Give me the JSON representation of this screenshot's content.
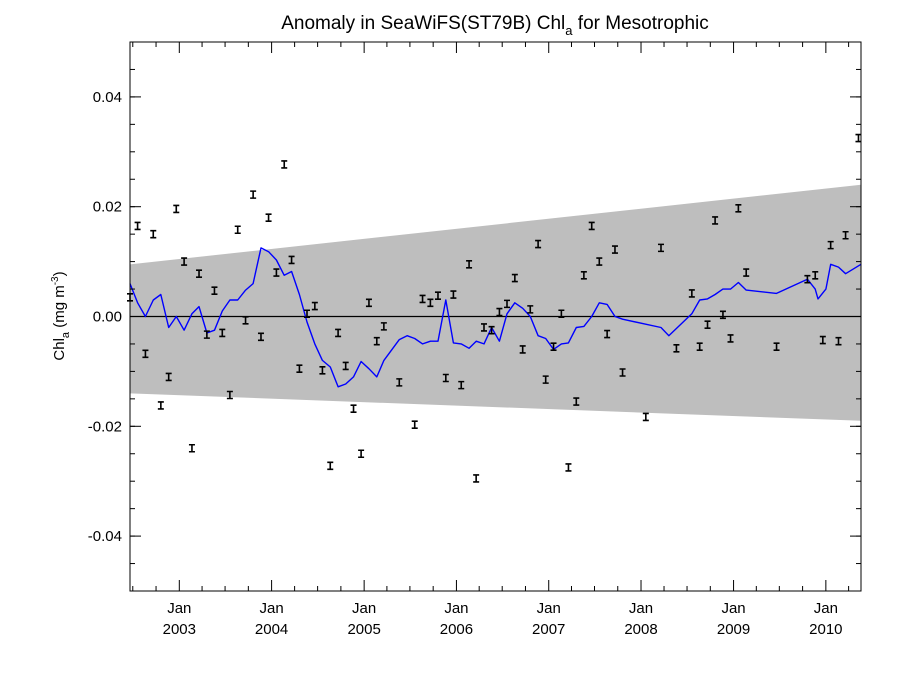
{
  "chart_data": {
    "type": "line",
    "title": "Anomaly in SeaWiFS(ST79B) Chl",
    "title_sub": "a",
    "title_suffix": " for Mesotrophic",
    "ylabel": {
      "base": "Chl",
      "sub": "a",
      "unit_open": " (mg m",
      "sup": "-3",
      "unit_close": ")"
    },
    "xlim": [
      "2002-06-20",
      "2010-05-20"
    ],
    "ylim": [
      -0.05,
      0.05
    ],
    "y_ticks": [
      {
        "value": -0.04,
        "label": "-0.04"
      },
      {
        "value": -0.02,
        "label": "-0.02"
      },
      {
        "value": 0.0,
        "label": "0.00"
      },
      {
        "value": 0.02,
        "label": "0.02"
      },
      {
        "value": 0.04,
        "label": "0.04"
      }
    ],
    "x_ticks": [
      {
        "date": "2003-01-01",
        "month": "Jan",
        "year": "2003"
      },
      {
        "date": "2004-01-01",
        "month": "Jan",
        "year": "2004"
      },
      {
        "date": "2005-01-01",
        "month": "Jan",
        "year": "2005"
      },
      {
        "date": "2006-01-01",
        "month": "Jan",
        "year": "2006"
      },
      {
        "date": "2007-01-01",
        "month": "Jan",
        "year": "2007"
      },
      {
        "date": "2008-01-01",
        "month": "Jan",
        "year": "2008"
      },
      {
        "date": "2009-01-01",
        "month": "Jan",
        "year": "2009"
      },
      {
        "date": "2010-01-01",
        "month": "Jan",
        "year": "2010"
      }
    ],
    "confidence_band": {
      "start": "2002-06-20",
      "end": "2010-05-20",
      "upper": [
        0.0095,
        0.024
      ],
      "lower": [
        -0.014,
        -0.019
      ],
      "color": "#bebebe"
    },
    "zero_line": 0.0,
    "series": [
      {
        "kind": "anomaly_points_with_error_bars",
        "color": "#000000",
        "points": [
          {
            "x": "2002-06-20",
            "y": 0.0035
          },
          {
            "x": "2002-07-20",
            "y": 0.0165
          },
          {
            "x": "2002-08-20",
            "y": -0.0068
          },
          {
            "x": "2002-09-20",
            "y": 0.015
          },
          {
            "x": "2002-10-20",
            "y": -0.0162
          },
          {
            "x": "2002-11-20",
            "y": -0.011
          },
          {
            "x": "2002-12-20",
            "y": 0.0196
          },
          {
            "x": "2003-01-20",
            "y": 0.01
          },
          {
            "x": "2003-02-20",
            "y": -0.024
          },
          {
            "x": "2003-03-20",
            "y": 0.0078
          },
          {
            "x": "2003-04-20",
            "y": -0.0033
          },
          {
            "x": "2003-05-20",
            "y": 0.0047
          },
          {
            "x": "2003-06-20",
            "y": -0.003
          },
          {
            "x": "2003-07-20",
            "y": -0.0143
          },
          {
            "x": "2003-08-20",
            "y": 0.0158
          },
          {
            "x": "2003-09-20",
            "y": -0.0007
          },
          {
            "x": "2003-10-20",
            "y": 0.0222
          },
          {
            "x": "2003-11-20",
            "y": -0.0037
          },
          {
            "x": "2003-12-20",
            "y": 0.018
          },
          {
            "x": "2004-01-20",
            "y": 0.008
          },
          {
            "x": "2004-02-20",
            "y": 0.0277
          },
          {
            "x": "2004-03-20",
            "y": 0.0103
          },
          {
            "x": "2004-04-20",
            "y": -0.0095
          },
          {
            "x": "2004-05-20",
            "y": 0.0005
          },
          {
            "x": "2004-06-20",
            "y": 0.0019
          },
          {
            "x": "2004-07-20",
            "y": -0.0098
          },
          {
            "x": "2004-08-20",
            "y": -0.0272
          },
          {
            "x": "2004-09-20",
            "y": -0.003
          },
          {
            "x": "2004-10-20",
            "y": -0.009
          },
          {
            "x": "2004-11-20",
            "y": -0.0168
          },
          {
            "x": "2004-12-20",
            "y": -0.025
          },
          {
            "x": "2005-01-20",
            "y": 0.0025
          },
          {
            "x": "2005-02-20",
            "y": -0.0045
          },
          {
            "x": "2005-03-20",
            "y": -0.0018
          },
          {
            "x": "2005-05-20",
            "y": -0.012
          },
          {
            "x": "2005-07-20",
            "y": -0.0197
          },
          {
            "x": "2005-08-20",
            "y": 0.0032
          },
          {
            "x": "2005-09-20",
            "y": 0.0025
          },
          {
            "x": "2005-10-20",
            "y": 0.0038
          },
          {
            "x": "2005-11-20",
            "y": -0.0112
          },
          {
            "x": "2005-12-20",
            "y": 0.004
          },
          {
            "x": "2006-01-20",
            "y": -0.0125
          },
          {
            "x": "2006-02-20",
            "y": 0.0095
          },
          {
            "x": "2006-03-20",
            "y": -0.0295
          },
          {
            "x": "2006-04-20",
            "y": -0.002
          },
          {
            "x": "2006-05-20",
            "y": -0.0025
          },
          {
            "x": "2006-06-20",
            "y": 0.0008
          },
          {
            "x": "2006-07-20",
            "y": 0.0023
          },
          {
            "x": "2006-08-20",
            "y": 0.007
          },
          {
            "x": "2006-09-20",
            "y": -0.006
          },
          {
            "x": "2006-10-20",
            "y": 0.0013
          },
          {
            "x": "2006-11-20",
            "y": 0.0132
          },
          {
            "x": "2006-12-20",
            "y": -0.0115
          },
          {
            "x": "2007-01-20",
            "y": -0.0055
          },
          {
            "x": "2007-02-20",
            "y": 0.0005
          },
          {
            "x": "2007-03-20",
            "y": -0.0275
          },
          {
            "x": "2007-04-20",
            "y": -0.0155
          },
          {
            "x": "2007-05-20",
            "y": 0.0075
          },
          {
            "x": "2007-06-20",
            "y": 0.0165
          },
          {
            "x": "2007-07-20",
            "y": 0.01
          },
          {
            "x": "2007-08-20",
            "y": -0.0032
          },
          {
            "x": "2007-09-20",
            "y": 0.0122
          },
          {
            "x": "2007-10-20",
            "y": -0.0102
          },
          {
            "x": "2008-01-20",
            "y": -0.0183
          },
          {
            "x": "2008-03-20",
            "y": 0.0125
          },
          {
            "x": "2008-05-20",
            "y": -0.0058
          },
          {
            "x": "2008-07-20",
            "y": 0.0042
          },
          {
            "x": "2008-08-20",
            "y": -0.0055
          },
          {
            "x": "2008-09-20",
            "y": -0.0015
          },
          {
            "x": "2008-10-20",
            "y": 0.0175
          },
          {
            "x": "2008-11-20",
            "y": 0.0003
          },
          {
            "x": "2008-12-20",
            "y": -0.004
          },
          {
            "x": "2009-01-20",
            "y": 0.0197
          },
          {
            "x": "2009-02-20",
            "y": 0.008
          },
          {
            "x": "2009-06-20",
            "y": -0.0055
          },
          {
            "x": "2009-10-20",
            "y": 0.0068
          },
          {
            "x": "2009-11-20",
            "y": 0.0075
          },
          {
            "x": "2009-12-20",
            "y": -0.0043
          },
          {
            "x": "2010-01-20",
            "y": 0.013
          },
          {
            "x": "2010-02-20",
            "y": -0.0045
          },
          {
            "x": "2010-03-20",
            "y": 0.0148
          },
          {
            "x": "2010-05-10",
            "y": 0.0325
          }
        ]
      },
      {
        "kind": "smoothed_line",
        "color": "#0000ff",
        "points": [
          {
            "x": "2002-06-20",
            "y": 0.006
          },
          {
            "x": "2002-07-20",
            "y": 0.0025
          },
          {
            "x": "2002-08-20",
            "y": 0.0
          },
          {
            "x": "2002-09-20",
            "y": 0.003
          },
          {
            "x": "2002-10-20",
            "y": 0.004
          },
          {
            "x": "2002-11-20",
            "y": -0.002
          },
          {
            "x": "2002-12-20",
            "y": 0.0
          },
          {
            "x": "2003-01-20",
            "y": -0.0025
          },
          {
            "x": "2003-02-20",
            "y": 0.0005
          },
          {
            "x": "2003-03-20",
            "y": 0.0018
          },
          {
            "x": "2003-04-20",
            "y": -0.003
          },
          {
            "x": "2003-05-20",
            "y": -0.0025
          },
          {
            "x": "2003-06-20",
            "y": 0.001
          },
          {
            "x": "2003-07-20",
            "y": 0.003
          },
          {
            "x": "2003-08-20",
            "y": 0.003
          },
          {
            "x": "2003-09-20",
            "y": 0.0048
          },
          {
            "x": "2003-10-20",
            "y": 0.006
          },
          {
            "x": "2003-11-20",
            "y": 0.0125
          },
          {
            "x": "2003-12-20",
            "y": 0.0118
          },
          {
            "x": "2004-01-20",
            "y": 0.0103
          },
          {
            "x": "2004-02-20",
            "y": 0.0075
          },
          {
            "x": "2004-03-20",
            "y": 0.0082
          },
          {
            "x": "2004-04-20",
            "y": 0.004
          },
          {
            "x": "2004-05-20",
            "y": -0.001
          },
          {
            "x": "2004-06-20",
            "y": -0.005
          },
          {
            "x": "2004-07-20",
            "y": -0.008
          },
          {
            "x": "2004-08-20",
            "y": -0.0092
          },
          {
            "x": "2004-09-20",
            "y": -0.0128
          },
          {
            "x": "2004-10-20",
            "y": -0.0123
          },
          {
            "x": "2004-11-20",
            "y": -0.011
          },
          {
            "x": "2004-12-20",
            "y": -0.0082
          },
          {
            "x": "2005-01-20",
            "y": -0.0095
          },
          {
            "x": "2005-02-20",
            "y": -0.011
          },
          {
            "x": "2005-03-20",
            "y": -0.008
          },
          {
            "x": "2005-05-20",
            "y": -0.0042
          },
          {
            "x": "2005-06-20",
            "y": -0.0035
          },
          {
            "x": "2005-07-20",
            "y": -0.004
          },
          {
            "x": "2005-08-20",
            "y": -0.005
          },
          {
            "x": "2005-09-20",
            "y": -0.0045
          },
          {
            "x": "2005-10-20",
            "y": -0.0045
          },
          {
            "x": "2005-11-20",
            "y": 0.003
          },
          {
            "x": "2005-12-20",
            "y": -0.0048
          },
          {
            "x": "2006-01-20",
            "y": -0.005
          },
          {
            "x": "2006-02-20",
            "y": -0.0058
          },
          {
            "x": "2006-03-20",
            "y": -0.0045
          },
          {
            "x": "2006-04-20",
            "y": -0.005
          },
          {
            "x": "2006-05-20",
            "y": -0.002
          },
          {
            "x": "2006-06-20",
            "y": -0.0045
          },
          {
            "x": "2006-07-20",
            "y": 0.0005
          },
          {
            "x": "2006-08-20",
            "y": 0.0025
          },
          {
            "x": "2006-09-20",
            "y": 0.0015
          },
          {
            "x": "2006-10-20",
            "y": 0.0
          },
          {
            "x": "2006-11-20",
            "y": -0.0035
          },
          {
            "x": "2006-12-20",
            "y": -0.004
          },
          {
            "x": "2007-01-20",
            "y": -0.006
          },
          {
            "x": "2007-02-20",
            "y": -0.005
          },
          {
            "x": "2007-03-20",
            "y": -0.0048
          },
          {
            "x": "2007-04-20",
            "y": -0.002
          },
          {
            "x": "2007-05-20",
            "y": -0.0018
          },
          {
            "x": "2007-06-20",
            "y": 0.0
          },
          {
            "x": "2007-07-20",
            "y": 0.0025
          },
          {
            "x": "2007-08-20",
            "y": 0.0022
          },
          {
            "x": "2007-09-20",
            "y": 0.0
          },
          {
            "x": "2007-10-20",
            "y": -0.0005
          },
          {
            "x": "2008-03-20",
            "y": -0.002
          },
          {
            "x": "2008-04-20",
            "y": -0.0035
          },
          {
            "x": "2008-07-20",
            "y": 0.0005
          },
          {
            "x": "2008-08-20",
            "y": 0.003
          },
          {
            "x": "2008-09-20",
            "y": 0.0032
          },
          {
            "x": "2008-10-20",
            "y": 0.004
          },
          {
            "x": "2008-11-20",
            "y": 0.005
          },
          {
            "x": "2008-12-20",
            "y": 0.005
          },
          {
            "x": "2009-01-20",
            "y": 0.0062
          },
          {
            "x": "2009-02-20",
            "y": 0.0048
          },
          {
            "x": "2009-06-20",
            "y": 0.0042
          },
          {
            "x": "2009-10-20",
            "y": 0.0068
          },
          {
            "x": "2009-11-20",
            "y": 0.005
          },
          {
            "x": "2009-12-01",
            "y": 0.0032
          },
          {
            "x": "2010-01-01",
            "y": 0.005
          },
          {
            "x": "2010-01-20",
            "y": 0.0095
          },
          {
            "x": "2010-02-20",
            "y": 0.009
          },
          {
            "x": "2010-03-20",
            "y": 0.0078
          },
          {
            "x": "2010-05-20",
            "y": 0.0095
          }
        ]
      }
    ]
  }
}
